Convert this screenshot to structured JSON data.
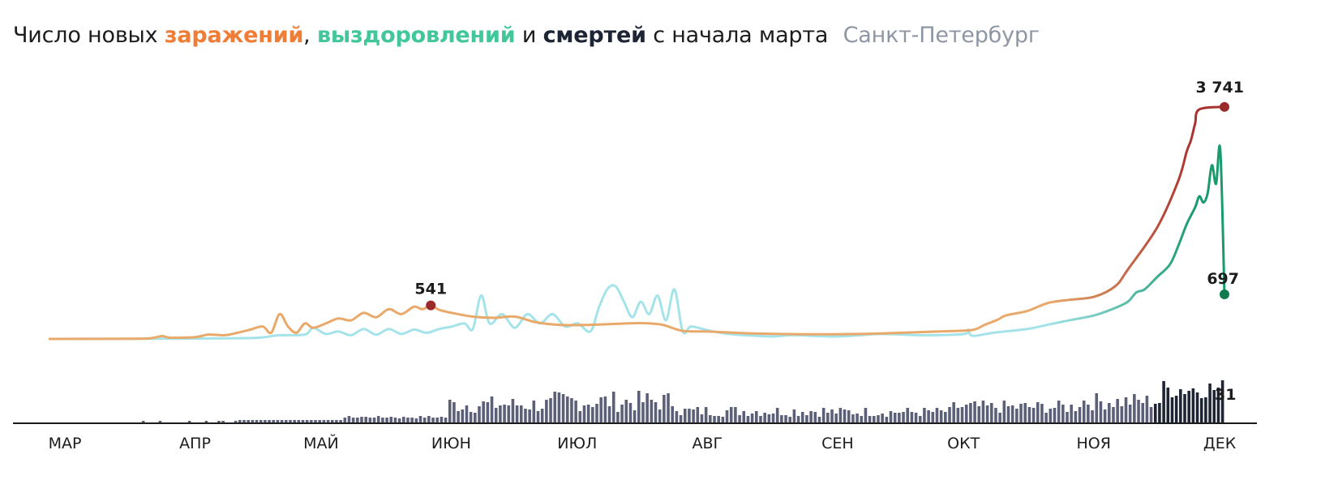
{
  "title": {
    "prefix": "Число новых",
    "infections": "заражений",
    "comma": ",",
    "recoveries": "выздоровлений",
    "and": "и",
    "deaths": "смертей",
    "suffix": "с начала марта",
    "region": "Санкт-Петербург"
  },
  "colors": {
    "infections": "#e8a96a",
    "infections_late": "#a8322f",
    "recoveries": "#a5e3ea",
    "recoveries_late": "#1a9b6e",
    "deaths_bars": "#5b6078",
    "deaths_bars_late": "#1d2433",
    "marker_red": "#9a2a2a",
    "marker_green": "#0e7b4f"
  },
  "chart_data": {
    "type": "line",
    "x_axis": {
      "type": "date",
      "start": "2020-03-01",
      "end": "2020-12-06"
    },
    "months": [
      "МАР",
      "АПР",
      "МАЙ",
      "ИЮН",
      "ИЮЛ",
      "АВГ",
      "СЕН",
      "ОКТ",
      "НОЯ",
      "ДЕК"
    ],
    "ylim": [
      0,
      4000
    ],
    "series": [
      {
        "key": "infections",
        "points": [
          [
            "2020-03-01",
            0
          ],
          [
            "2020-03-20",
            3
          ],
          [
            "2020-03-25",
            10
          ],
          [
            "2020-03-28",
            45
          ],
          [
            "2020-03-30",
            20
          ],
          [
            "2020-04-05",
            30
          ],
          [
            "2020-04-08",
            70
          ],
          [
            "2020-04-12",
            60
          ],
          [
            "2020-04-15",
            100
          ],
          [
            "2020-04-18",
            150
          ],
          [
            "2020-04-21",
            200
          ],
          [
            "2020-04-23",
            100
          ],
          [
            "2020-04-25",
            400
          ],
          [
            "2020-04-27",
            200
          ],
          [
            "2020-04-29",
            100
          ],
          [
            "2020-05-01",
            250
          ],
          [
            "2020-05-03",
            180
          ],
          [
            "2020-05-06",
            250
          ],
          [
            "2020-05-09",
            330
          ],
          [
            "2020-05-12",
            300
          ],
          [
            "2020-05-15",
            420
          ],
          [
            "2020-05-18",
            350
          ],
          [
            "2020-05-21",
            480
          ],
          [
            "2020-05-24",
            400
          ],
          [
            "2020-05-27",
            520
          ],
          [
            "2020-05-29",
            480
          ],
          [
            "2020-05-31",
            541
          ],
          [
            "2020-06-02",
            470
          ],
          [
            "2020-06-05",
            420
          ],
          [
            "2020-06-10",
            360
          ],
          [
            "2020-06-15",
            340
          ],
          [
            "2020-06-20",
            360
          ],
          [
            "2020-06-25",
            270
          ],
          [
            "2020-07-01",
            225
          ],
          [
            "2020-07-07",
            225
          ],
          [
            "2020-07-13",
            240
          ],
          [
            "2020-07-20",
            255
          ],
          [
            "2020-07-25",
            230
          ],
          [
            "2020-07-30",
            130
          ],
          [
            "2020-08-05",
            120
          ],
          [
            "2020-08-15",
            90
          ],
          [
            "2020-08-30",
            75
          ],
          [
            "2020-09-10",
            80
          ],
          [
            "2020-09-20",
            100
          ],
          [
            "2020-10-01",
            125
          ],
          [
            "2020-10-07",
            145
          ],
          [
            "2020-10-10",
            230
          ],
          [
            "2020-10-13",
            310
          ],
          [
            "2020-10-15",
            380
          ],
          [
            "2020-10-20",
            450
          ],
          [
            "2020-10-25",
            580
          ],
          [
            "2020-10-30",
            630
          ],
          [
            "2020-11-05",
            680
          ],
          [
            "2020-11-10",
            850
          ],
          [
            "2020-11-13",
            1120
          ],
          [
            "2020-11-20",
            1800
          ],
          [
            "2020-11-25",
            2550
          ],
          [
            "2020-11-27",
            3020
          ],
          [
            "2020-11-28",
            3200
          ],
          [
            "2020-11-29",
            3470
          ],
          [
            "2020-11-30",
            3700
          ],
          [
            "2020-12-06",
            3741
          ]
        ],
        "last_value": 3741,
        "annotated_peak": {
          "date": "2020-05-31",
          "value": 541
        }
      },
      {
        "key": "recoveries",
        "points": [
          [
            "2020-03-01",
            0
          ],
          [
            "2020-04-01",
            5
          ],
          [
            "2020-04-12",
            10
          ],
          [
            "2020-04-20",
            20
          ],
          [
            "2020-04-25",
            60
          ],
          [
            "2020-05-01",
            70
          ],
          [
            "2020-05-03",
            180
          ],
          [
            "2020-05-06",
            80
          ],
          [
            "2020-05-09",
            120
          ],
          [
            "2020-05-12",
            60
          ],
          [
            "2020-05-15",
            160
          ],
          [
            "2020-05-18",
            70
          ],
          [
            "2020-05-21",
            160
          ],
          [
            "2020-05-24",
            80
          ],
          [
            "2020-05-27",
            150
          ],
          [
            "2020-05-30",
            100
          ],
          [
            "2020-06-02",
            160
          ],
          [
            "2020-06-05",
            200
          ],
          [
            "2020-06-08",
            250
          ],
          [
            "2020-06-10",
            160
          ],
          [
            "2020-06-12",
            700
          ],
          [
            "2020-06-14",
            250
          ],
          [
            "2020-06-17",
            400
          ],
          [
            "2020-06-20",
            180
          ],
          [
            "2020-06-23",
            400
          ],
          [
            "2020-06-26",
            250
          ],
          [
            "2020-06-29",
            400
          ],
          [
            "2020-07-02",
            200
          ],
          [
            "2020-07-05",
            250
          ],
          [
            "2020-07-08",
            120
          ],
          [
            "2020-07-10",
            500
          ],
          [
            "2020-07-12",
            800
          ],
          [
            "2020-07-14",
            850
          ],
          [
            "2020-07-16",
            600
          ],
          [
            "2020-07-18",
            350
          ],
          [
            "2020-07-20",
            600
          ],
          [
            "2020-07-22",
            400
          ],
          [
            "2020-07-24",
            700
          ],
          [
            "2020-07-26",
            300
          ],
          [
            "2020-07-28",
            800
          ],
          [
            "2020-07-30",
            120
          ],
          [
            "2020-08-01",
            200
          ],
          [
            "2020-08-05",
            140
          ],
          [
            "2020-08-10",
            80
          ],
          [
            "2020-08-20",
            40
          ],
          [
            "2020-08-25",
            60
          ],
          [
            "2020-09-05",
            40
          ],
          [
            "2020-09-15",
            80
          ],
          [
            "2020-09-25",
            60
          ],
          [
            "2020-10-05",
            80
          ],
          [
            "2020-10-06",
            150
          ],
          [
            "2020-10-07",
            50
          ],
          [
            "2020-10-12",
            100
          ],
          [
            "2020-10-20",
            160
          ],
          [
            "2020-10-25",
            230
          ],
          [
            "2020-10-30",
            300
          ],
          [
            "2020-11-05",
            380
          ],
          [
            "2020-11-10",
            500
          ],
          [
            "2020-11-13",
            600
          ],
          [
            "2020-11-15",
            750
          ],
          [
            "2020-11-17",
            800
          ],
          [
            "2020-11-20",
            1000
          ],
          [
            "2020-11-23",
            1200
          ],
          [
            "2020-11-25",
            1500
          ],
          [
            "2020-11-27",
            1850
          ],
          [
            "2020-11-29",
            2120
          ],
          [
            "2020-11-30",
            2300
          ],
          [
            "2020-12-01",
            2200
          ],
          [
            "2020-12-02",
            2350
          ],
          [
            "2020-12-03",
            2800
          ],
          [
            "2020-12-04",
            2500
          ],
          [
            "2020-12-05",
            3050
          ],
          [
            "2020-12-06",
            697
          ]
        ],
        "last_value": 697
      },
      {
        "key": "deaths",
        "type": "bar",
        "last_value": 31
      }
    ],
    "labels": {
      "infections_last": "3 741",
      "infections_peak": "541",
      "recoveries_last": "697",
      "deaths_last": "31"
    }
  }
}
